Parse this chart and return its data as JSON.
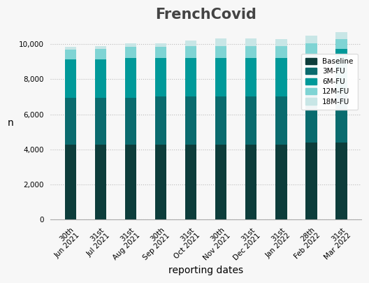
{
  "title": "FrenchCovid",
  "xlabel": "reporting dates",
  "ylabel": "n",
  "categories": [
    "30th\nJun 2021",
    "31st\nJul 2021",
    "31st\nAug 2021",
    "30th\nSep 2021",
    "31st\nOct 2021",
    "30th\nNov 2021",
    "31st\nDec 2021",
    "31st\nJan 2022",
    "28th\nFeb 2022",
    "31st\nMar 2022"
  ],
  "baseline": [
    4250,
    4250,
    4250,
    4250,
    4250,
    4250,
    4250,
    4250,
    4400,
    4380
  ],
  "fu3m": [
    2700,
    2700,
    2700,
    2750,
    2750,
    2750,
    2750,
    2750,
    2800,
    2850
  ],
  "fu6m": [
    2200,
    2200,
    2250,
    2200,
    2200,
    2200,
    2200,
    2200,
    2200,
    2500
  ],
  "fu12m": [
    550,
    600,
    650,
    650,
    700,
    700,
    700,
    680,
    650,
    550
  ],
  "fu18m": [
    150,
    150,
    200,
    200,
    300,
    450,
    450,
    420,
    450,
    420
  ],
  "colors": {
    "baseline": "#0d3d3b",
    "fu3m": "#0a6b6e",
    "fu6m": "#009999",
    "fu12m": "#7fd4d4",
    "fu18m": "#c8e6e6"
  },
  "legend_labels": [
    "Baseline",
    "3M-FU",
    "6M-FU",
    "12M-FU",
    "18M-FU"
  ],
  "ylim": [
    0,
    11000
  ],
  "yticks": [
    0,
    2000,
    4000,
    6000,
    8000,
    10000
  ],
  "background_color": "#f7f7f7",
  "title_fontsize": 15,
  "title_color": "#444444",
  "axis_label_fontsize": 10,
  "tick_fontsize": 7.5
}
